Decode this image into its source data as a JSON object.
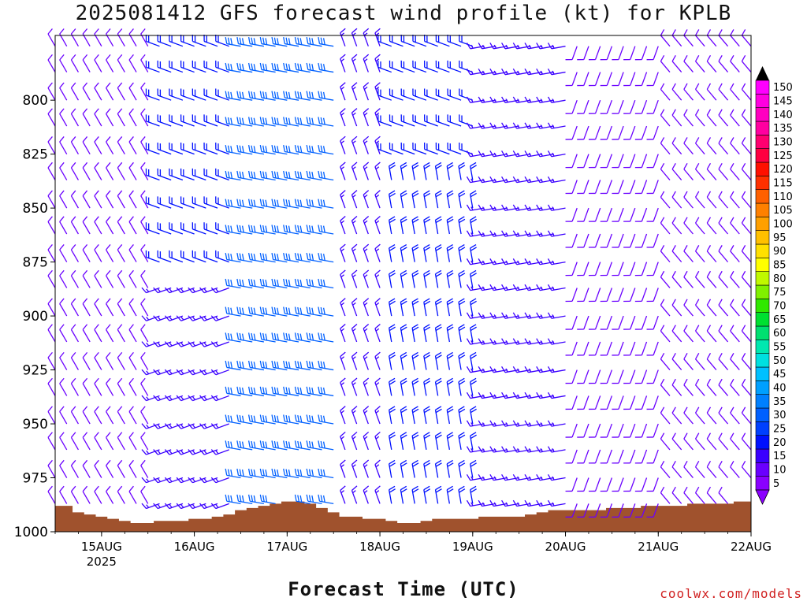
{
  "header": {
    "title": "2025081412 GFS forecast wind profile (kt) for KPLB"
  },
  "footer": {
    "xlabel": "Forecast Time (UTC)",
    "credit": "coolwx.com/models"
  },
  "chart_data": {
    "type": "wind_barb_profile",
    "title": "2025081412 GFS forecast wind profile (kt) for KPLB",
    "xlabel": "Forecast Time (UTC)",
    "ylabel": "",
    "y_axis": {
      "ticks": [
        800,
        825,
        850,
        875,
        900,
        925,
        950,
        975,
        1000
      ],
      "reversed": true,
      "range": [
        770,
        1000
      ],
      "unit": "hPa"
    },
    "x_axis": {
      "ticks": [
        "15AUG",
        "16AUG",
        "17AUG",
        "18AUG",
        "19AUG",
        "20AUG",
        "21AUG",
        "22AUG"
      ],
      "year_label": "2025",
      "range_days": [
        14.5,
        22.0
      ]
    },
    "colorbar": {
      "unit": "kt",
      "levels": [
        5,
        10,
        15,
        20,
        25,
        30,
        35,
        40,
        45,
        50,
        55,
        60,
        65,
        70,
        75,
        80,
        85,
        90,
        95,
        100,
        105,
        110,
        115,
        120,
        125,
        130,
        135,
        140,
        145,
        150
      ],
      "colors": [
        "#8a00ff",
        "#6a00ff",
        "#3a00ff",
        "#0010ff",
        "#0040ff",
        "#0060ff",
        "#0080ff",
        "#00a0ff",
        "#00c0ff",
        "#00e0e0",
        "#00e8b0",
        "#00e070",
        "#00e030",
        "#30e800",
        "#80f000",
        "#c0f800",
        "#ffff00",
        "#ffe000",
        "#ffc000",
        "#ffa000",
        "#ff8000",
        "#ff6000",
        "#ff3000",
        "#ff1000",
        "#ff0040",
        "#ff0070",
        "#ff00a0",
        "#ff00c0",
        "#ff00e0",
        "#ff00ff"
      ]
    },
    "terrain_color": "#a0522d",
    "pressure_levels": [
      775,
      787,
      800,
      812,
      825,
      837,
      850,
      862,
      875,
      887,
      900,
      912,
      925,
      937,
      950,
      962,
      975,
      987
    ],
    "time_columns_days": [
      14.5,
      14.625,
      14.75,
      14.875,
      15.0,
      15.125,
      15.25,
      15.375,
      15.5,
      15.625,
      15.75,
      15.875,
      16.0,
      16.125,
      16.25,
      16.375,
      16.5,
      16.625,
      16.75,
      16.875,
      17.0,
      17.125,
      17.25,
      17.375,
      17.5,
      17.625,
      17.75,
      17.875,
      18.0,
      18.125,
      18.25,
      18.375,
      18.5,
      18.625,
      18.75,
      18.875,
      19.0,
      19.125,
      19.25,
      19.375,
      19.5,
      19.625,
      19.75,
      19.875,
      20.0,
      20.125,
      20.25,
      20.375,
      20.5,
      20.625,
      20.75,
      20.875,
      21.0,
      21.125,
      21.25,
      21.375,
      21.5,
      21.625,
      21.75,
      21.875,
      22.0
    ],
    "surface_pressure": [
      988,
      988,
      991,
      992,
      993,
      994,
      995,
      996,
      996,
      995,
      995,
      995,
      994,
      994,
      993,
      992,
      990,
      989,
      988,
      987,
      986,
      986,
      987,
      989,
      991,
      993,
      993,
      994,
      994,
      995,
      996,
      996,
      995,
      994,
      994,
      994,
      994,
      993,
      993,
      993,
      993,
      992,
      991,
      990,
      990,
      990,
      990,
      990,
      989,
      989,
      989,
      988,
      988,
      988,
      988,
      987,
      987,
      987,
      987,
      986,
      986
    ],
    "wind_regimes": [
      {
        "t_start": 14.5,
        "t_end": 15.6,
        "p_top": 770,
        "p_bot": 1000,
        "dir_deg": 330,
        "speed_kt": 10
      },
      {
        "t_start": 15.6,
        "t_end": 16.4,
        "p_top": 770,
        "p_bot": 880,
        "dir_deg": 290,
        "speed_kt": 20
      },
      {
        "t_start": 15.6,
        "t_end": 16.4,
        "p_top": 880,
        "p_bot": 1000,
        "dir_deg": 250,
        "speed_kt": 15
      },
      {
        "t_start": 16.4,
        "t_end": 17.5,
        "p_top": 770,
        "p_bot": 1000,
        "dir_deg": 280,
        "speed_kt": 30
      },
      {
        "t_start": 17.5,
        "t_end": 18.0,
        "p_top": 770,
        "p_bot": 1000,
        "dir_deg": 340,
        "speed_kt": 15
      },
      {
        "t_start": 18.0,
        "t_end": 19.1,
        "p_top": 770,
        "p_bot": 830,
        "dir_deg": 290,
        "speed_kt": 20
      },
      {
        "t_start": 18.0,
        "t_end": 19.1,
        "p_top": 830,
        "p_bot": 1000,
        "dir_deg": 350,
        "speed_kt": 20
      },
      {
        "t_start": 19.1,
        "t_end": 20.0,
        "p_top": 770,
        "p_bot": 1000,
        "dir_deg": 260,
        "speed_kt": 15
      },
      {
        "t_start": 20.0,
        "t_end": 21.0,
        "p_top": 770,
        "p_bot": 1000,
        "dir_deg": 200,
        "speed_kt": 10
      },
      {
        "t_start": 21.0,
        "t_end": 22.0,
        "p_top": 770,
        "p_bot": 1000,
        "dir_deg": 320,
        "speed_kt": 10
      }
    ]
  }
}
